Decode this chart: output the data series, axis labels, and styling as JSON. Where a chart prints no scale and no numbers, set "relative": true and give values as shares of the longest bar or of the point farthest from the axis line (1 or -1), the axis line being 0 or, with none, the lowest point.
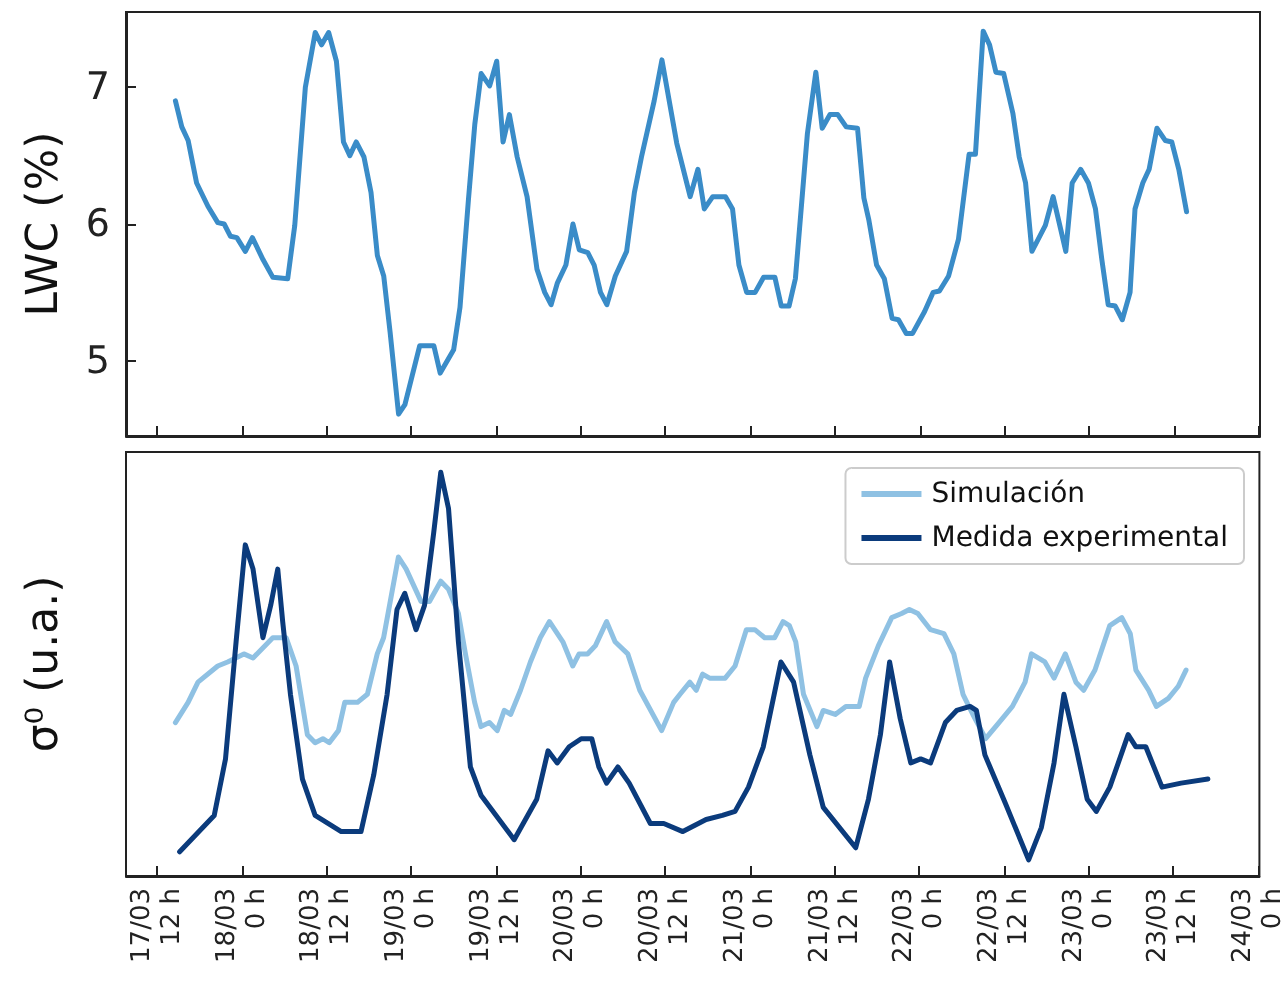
{
  "chart_data": [
    {
      "type": "line",
      "ylabel": "LWC (%)",
      "tick_labels": "y",
      "xlim": [
        "--03-17T07:36",
        "--03-24T00:12"
      ],
      "ylim": [
        4.45,
        7.55
      ],
      "yticks": [
        5,
        6,
        7
      ],
      "xticks": [
        {
          "value": "--03-17T12:00",
          "label": null
        },
        {
          "value": "--03-18T00:00",
          "label": null
        },
        {
          "value": "--03-18T12:00",
          "label": null
        },
        {
          "value": "--03-19T00:00",
          "label": null
        },
        {
          "value": "--03-19T12:00",
          "label": null
        },
        {
          "value": "--03-20T00:00",
          "label": null
        },
        {
          "value": "--03-20T12:00",
          "label": null
        },
        {
          "value": "--03-21T00:00",
          "label": null
        },
        {
          "value": "--03-21T12:00",
          "label": null
        },
        {
          "value": "--03-22T00:00",
          "label": null
        },
        {
          "value": "--03-22T12:00",
          "label": null
        },
        {
          "value": "--03-23T00:00",
          "label": null
        },
        {
          "value": "--03-23T12:00",
          "label": null
        },
        {
          "value": "--03-24T00:00",
          "label": null
        }
      ],
      "series": [
        {
          "color": "#3a8cc8",
          "x": [
            "--03-17T14:36",
            "--03-17T15:30",
            "--03-17T16:24",
            "--03-17T17:36",
            "--03-17T19:12",
            "--03-17T20:36",
            "--03-17T21:30",
            "--03-17T22:24",
            "--03-17T23:18",
            "--03-18T00:30",
            "--03-18T01:30",
            "--03-18T03:00",
            "--03-18T04:24",
            "--03-18T06:30",
            "--03-18T07:30",
            "--03-18T09:00",
            "--03-18T10:24",
            "--03-18T11:18",
            "--03-18T12:18",
            "--03-18T13:24",
            "--03-18T14:24",
            "--03-18T15:18",
            "--03-18T16:12",
            "--03-18T17:18",
            "--03-18T18:18",
            "--03-18T19:12",
            "--03-18T20:06",
            "--03-18T21:00",
            "--03-18T22:12",
            "--03-18T23:06",
            "--03-19T01:12",
            "--03-19T03:12",
            "--03-19T04:06",
            "--03-19T06:00",
            "--03-19T06:54",
            "--03-19T08:06",
            "--03-19T09:00",
            "--03-19T09:54",
            "--03-19T11:06",
            "--03-19T12:06",
            "--03-19T13:00",
            "--03-19T13:54",
            "--03-19T15:00",
            "--03-19T16:24",
            "--03-19T17:48",
            "--03-19T18:54",
            "--03-19T19:48",
            "--03-19T20:42",
            "--03-19T21:54",
            "--03-19T22:54",
            "--03-19T23:48",
            "--03-20T01:00",
            "--03-20T01:54",
            "--03-20T02:48",
            "--03-20T03:42",
            "--03-20T04:54",
            "--03-20T06:30",
            "--03-20T07:36",
            "--03-20T08:36",
            "--03-20T10:24",
            "--03-20T11:30",
            "--03-20T13:36",
            "--03-20T15:30",
            "--03-20T16:36",
            "--03-20T17:30",
            "--03-20T18:42",
            "--03-20T20:30",
            "--03-20T21:30",
            "--03-20T22:24",
            "--03-20T23:30",
            "--03-21T00:42",
            "--03-21T01:54",
            "--03-21T03:30",
            "--03-21T04:24",
            "--03-21T05:30",
            "--03-21T06:24",
            "--03-21T08:06",
            "--03-21T09:18",
            "--03-21T10:12",
            "--03-21T11:18",
            "--03-21T12:24",
            "--03-21T13:36",
            "--03-21T15:12",
            "--03-21T16:06",
            "--03-21T16:48",
            "--03-21T17:54",
            "--03-21T19:00",
            "--03-21T20:06",
            "--03-21T21:00",
            "--03-21T22:06",
            "--03-21T23:00",
            "--03-22T00:42",
            "--03-22T01:54",
            "--03-22T02:48",
            "--03-22T04:06",
            "--03-22T05:30",
            "--03-22T07:00",
            "--03-22T07:54",
            "--03-22T09:00",
            "--03-22T09:54",
            "--03-22T10:48",
            "--03-22T11:54",
            "--03-22T13:12",
            "--03-22T14:06",
            "--03-22T15:00",
            "--03-22T15:54",
            "--03-22T17:48",
            "--03-22T18:54",
            "--03-22T20:42",
            "--03-22T21:36",
            "--03-22T22:48",
            "--03-22T23:54",
            "--03-23T00:54",
            "--03-23T01:48",
            "--03-23T02:42",
            "--03-23T03:42",
            "--03-23T04:42",
            "--03-23T05:48",
            "--03-23T06:30",
            "--03-23T07:36",
            "--03-23T08:30",
            "--03-23T09:36",
            "--03-23T10:48",
            "--03-23T11:42",
            "--03-23T12:42",
            "--03-23T13:48"
          ],
          "values": [
            6.9,
            6.71,
            6.61,
            6.3,
            6.13,
            6.01,
            6.0,
            5.91,
            5.9,
            5.8,
            5.9,
            5.74,
            5.61,
            5.6,
            5.99,
            7.0,
            7.4,
            7.31,
            7.4,
            7.19,
            6.6,
            6.5,
            6.6,
            6.49,
            6.23,
            5.77,
            5.62,
            5.21,
            4.61,
            4.68,
            5.11,
            5.11,
            4.91,
            5.08,
            5.39,
            6.18,
            6.73,
            7.1,
            7.01,
            7.19,
            6.6,
            6.8,
            6.49,
            6.2,
            5.67,
            5.5,
            5.41,
            5.57,
            5.7,
            6.0,
            5.81,
            5.79,
            5.7,
            5.5,
            5.41,
            5.62,
            5.8,
            6.23,
            6.49,
            6.9,
            7.2,
            6.59,
            6.2,
            6.4,
            6.11,
            6.2,
            6.2,
            6.11,
            5.7,
            5.5,
            5.5,
            5.61,
            5.61,
            5.4,
            5.4,
            5.6,
            6.66,
            7.11,
            6.7,
            6.8,
            6.8,
            6.71,
            6.7,
            6.19,
            6.03,
            5.7,
            5.6,
            5.31,
            5.3,
            5.2,
            5.2,
            5.36,
            5.5,
            5.51,
            5.62,
            5.89,
            6.51,
            6.51,
            7.41,
            7.31,
            7.11,
            7.1,
            6.81,
            6.49,
            6.3,
            5.8,
            5.99,
            6.2,
            5.8,
            6.3,
            6.4,
            6.3,
            6.11,
            5.74,
            5.41,
            5.4,
            5.3,
            5.5,
            6.11,
            6.3,
            6.4,
            6.7,
            6.61,
            6.6,
            6.4,
            6.09
          ]
        }
      ]
    },
    {
      "type": "line",
      "ylabel": "σ⁰ (u.a.)",
      "relative": true,
      "tick_labels": "x",
      "legend": "top right",
      "xlim": [
        "--03-17T07:36",
        "--03-24T00:12"
      ],
      "xticks": [
        {
          "value": "--03-17T12:00",
          "label": "17/03\n12 h"
        },
        {
          "value": "--03-18T00:00",
          "label": "18/03\n0 h"
        },
        {
          "value": "--03-18T12:00",
          "label": "18/03\n12 h"
        },
        {
          "value": "--03-19T00:00",
          "label": "19/03\n0 h"
        },
        {
          "value": "--03-19T12:00",
          "label": "19/03\n12 h"
        },
        {
          "value": "--03-20T00:00",
          "label": "20/03\n0 h"
        },
        {
          "value": "--03-20T12:00",
          "label": "20/03\n12 h"
        },
        {
          "value": "--03-21T00:00",
          "label": "21/03\n0 h"
        },
        {
          "value": "--03-21T12:00",
          "label": "21/03\n12 h"
        },
        {
          "value": "--03-22T00:00",
          "label": "22/03\n0 h"
        },
        {
          "value": "--03-22T12:00",
          "label": "22/03\n12 h"
        },
        {
          "value": "--03-23T00:00",
          "label": "23/03\n0 h"
        },
        {
          "value": "--03-23T12:00",
          "label": "23/03\n12 h"
        },
        {
          "value": "--03-24T00:00",
          "label": "24/03\n0 h"
        }
      ],
      "series": [
        {
          "name": "Simulación",
          "color": "#8fc1e3",
          "x": [
            "--03-17T14:36",
            "--03-17T16:24",
            "--03-17T17:48",
            "--03-17T20:36",
            "--03-17T22:00",
            "--03-18T00:18",
            "--03-18T01:36",
            "--03-18T04:24",
            "--03-18T06:18",
            "--03-18T07:42",
            "--03-18T09:18",
            "--03-18T10:24",
            "--03-18T11:30",
            "--03-18T12:24",
            "--03-18T13:42",
            "--03-18T14:36",
            "--03-18T16:24",
            "--03-18T17:48",
            "--03-18T19:12",
            "--03-18T20:06",
            "--03-18T22:12",
            "--03-18T23:18",
            "--03-19T01:24",
            "--03-19T02:36",
            "--03-19T04:12",
            "--03-19T05:18",
            "--03-19T06:42",
            "--03-19T07:42",
            "--03-19T09:00",
            "--03-19T09:54",
            "--03-19T11:06",
            "--03-19T12:12",
            "--03-19T13:12",
            "--03-19T14:06",
            "--03-19T15:30",
            "--03-19T16:54",
            "--03-19T18:18",
            "--03-19T19:36",
            "--03-19T21:30",
            "--03-19T22:54",
            "--03-19T23:48",
            "--03-20T01:00",
            "--03-20T02:06",
            "--03-20T03:42",
            "--03-20T04:54",
            "--03-20T06:42",
            "--03-20T08:24",
            "--03-20T11:30",
            "--03-20T13:12",
            "--03-20T14:06",
            "--03-20T15:30",
            "--03-20T16:24",
            "--03-20T17:18",
            "--03-20T18:18",
            "--03-20T20:30",
            "--03-20T21:54",
            "--03-20T23:30",
            "--03-21T00:42",
            "--03-21T02:06",
            "--03-21T03:30",
            "--03-21T04:42",
            "--03-21T05:36",
            "--03-21T06:30",
            "--03-21T07:36",
            "--03-21T09:30",
            "--03-21T10:24",
            "--03-21T12:06",
            "--03-21T13:36",
            "--03-21T15:30",
            "--03-21T16:24",
            "--03-21T18:12",
            "--03-21T20:06",
            "--03-21T21:30",
            "--03-21T22:36",
            "--03-21T23:48",
            "--03-22T01:36",
            "--03-22T03:30",
            "--03-22T04:54",
            "--03-22T06:12",
            "--03-22T07:36",
            "--03-22T09:24",
            "--03-22T11:18",
            "--03-22T13:12",
            "--03-22T15:00",
            "--03-22T15:54",
            "--03-22T17:48",
            "--03-22T19:06",
            "--03-22T20:42",
            "--03-22T22:12",
            "--03-22T23:18",
            "--03-23T00:54",
            "--03-23T03:00",
            "--03-23T04:42",
            "--03-23T05:54",
            "--03-23T06:42",
            "--03-23T08:30",
            "--03-23T09:36",
            "--03-23T11:18",
            "--03-23T12:42",
            "--03-23T13:48"
          ],
          "values": [
            0.38,
            0.43,
            0.48,
            0.52,
            0.53,
            0.55,
            0.54,
            0.59,
            0.59,
            0.52,
            0.35,
            0.33,
            0.34,
            0.33,
            0.36,
            0.43,
            0.43,
            0.45,
            0.55,
            0.59,
            0.79,
            0.76,
            0.68,
            0.68,
            0.73,
            0.71,
            0.65,
            0.55,
            0.43,
            0.37,
            0.38,
            0.36,
            0.41,
            0.4,
            0.46,
            0.53,
            0.59,
            0.63,
            0.58,
            0.52,
            0.55,
            0.55,
            0.57,
            0.63,
            0.58,
            0.55,
            0.46,
            0.36,
            0.43,
            0.45,
            0.48,
            0.46,
            0.5,
            0.49,
            0.49,
            0.52,
            0.61,
            0.61,
            0.59,
            0.59,
            0.63,
            0.62,
            0.58,
            0.45,
            0.37,
            0.41,
            0.4,
            0.42,
            0.42,
            0.49,
            0.57,
            0.64,
            0.65,
            0.66,
            0.65,
            0.61,
            0.6,
            0.55,
            0.45,
            0.4,
            0.34,
            0.38,
            0.42,
            0.48,
            0.55,
            0.53,
            0.49,
            0.55,
            0.48,
            0.46,
            0.51,
            0.62,
            0.64,
            0.6,
            0.51,
            0.46,
            0.42,
            0.44,
            0.47,
            0.51
          ]
        },
        {
          "name": "Medida experimental",
          "color": "#0b3b7c",
          "x": [
            "--03-17T15:12",
            "--03-17T20:06",
            "--03-17T21:42",
            "--03-17T23:12",
            "--03-18T00:30",
            "--03-18T01:36",
            "--03-18T03:00",
            "--03-18T04:06",
            "--03-18T05:06",
            "--03-18T05:48",
            "--03-18T06:54",
            "--03-18T08:36",
            "--03-18T10:24",
            "--03-18T14:06",
            "--03-18T16:54",
            "--03-18T18:42",
            "--03-18T20:36",
            "--03-18T22:00",
            "--03-18T23:06",
            "--03-19T00:42",
            "--03-19T01:54",
            "--03-19T03:12",
            "--03-19T04:12",
            "--03-19T05:18",
            "--03-19T06:42",
            "--03-19T08:24",
            "--03-19T09:54",
            "--03-19T14:36",
            "--03-19T17:48",
            "--03-19T19:24",
            "--03-19T20:42",
            "--03-19T22:24",
            "--03-20T00:06",
            "--03-20T01:36",
            "--03-20T02:36",
            "--03-20T03:42",
            "--03-20T05:18",
            "--03-20T06:54",
            "--03-20T09:54",
            "--03-20T11:48",
            "--03-20T14:30",
            "--03-20T17:48",
            "--03-20T20:06",
            "--03-20T21:54",
            "--03-20T23:48",
            "--03-21T01:54",
            "--03-21T04:24",
            "--03-21T06:12",
            "--03-21T08:30",
            "--03-21T10:24",
            "--03-21T15:00",
            "--03-21T16:48",
            "--03-21T18:30",
            "--03-21T19:48",
            "--03-21T21:18",
            "--03-21T22:48",
            "--03-22T00:12",
            "--03-22T01:36",
            "--03-22T03:42",
            "--03-22T05:18",
            "--03-22T07:12",
            "--03-22T08:06",
            "--03-22T09:18",
            "--03-22T12:12",
            "--03-22T15:30",
            "--03-22T17:18",
            "--03-22T19:06",
            "--03-22T20:30",
            "--03-22T22:12",
            "--03-22T23:48",
            "--03-23T01:06",
            "--03-23T03:00",
            "--03-23T05:36",
            "--03-23T06:42",
            "--03-23T08:06",
            "--03-23T10:24",
            "--03-23T13:06",
            "--03-23T16:54"
          ],
          "values": [
            0.06,
            0.15,
            0.29,
            0.58,
            0.82,
            0.76,
            0.59,
            0.67,
            0.76,
            0.63,
            0.45,
            0.24,
            0.15,
            0.11,
            0.11,
            0.25,
            0.45,
            0.66,
            0.7,
            0.61,
            0.67,
            0.85,
            1.0,
            0.91,
            0.58,
            0.27,
            0.2,
            0.09,
            0.19,
            0.31,
            0.28,
            0.32,
            0.34,
            0.34,
            0.27,
            0.23,
            0.27,
            0.23,
            0.13,
            0.13,
            0.11,
            0.14,
            0.15,
            0.16,
            0.22,
            0.32,
            0.53,
            0.48,
            0.3,
            0.17,
            0.07,
            0.19,
            0.35,
            0.53,
            0.39,
            0.28,
            0.29,
            0.28,
            0.38,
            0.41,
            0.42,
            0.41,
            0.3,
            0.18,
            0.04,
            0.12,
            0.28,
            0.45,
            0.32,
            0.19,
            0.16,
            0.22,
            0.35,
            0.32,
            0.32,
            0.22,
            0.23,
            0.24
          ]
        }
      ]
    }
  ]
}
